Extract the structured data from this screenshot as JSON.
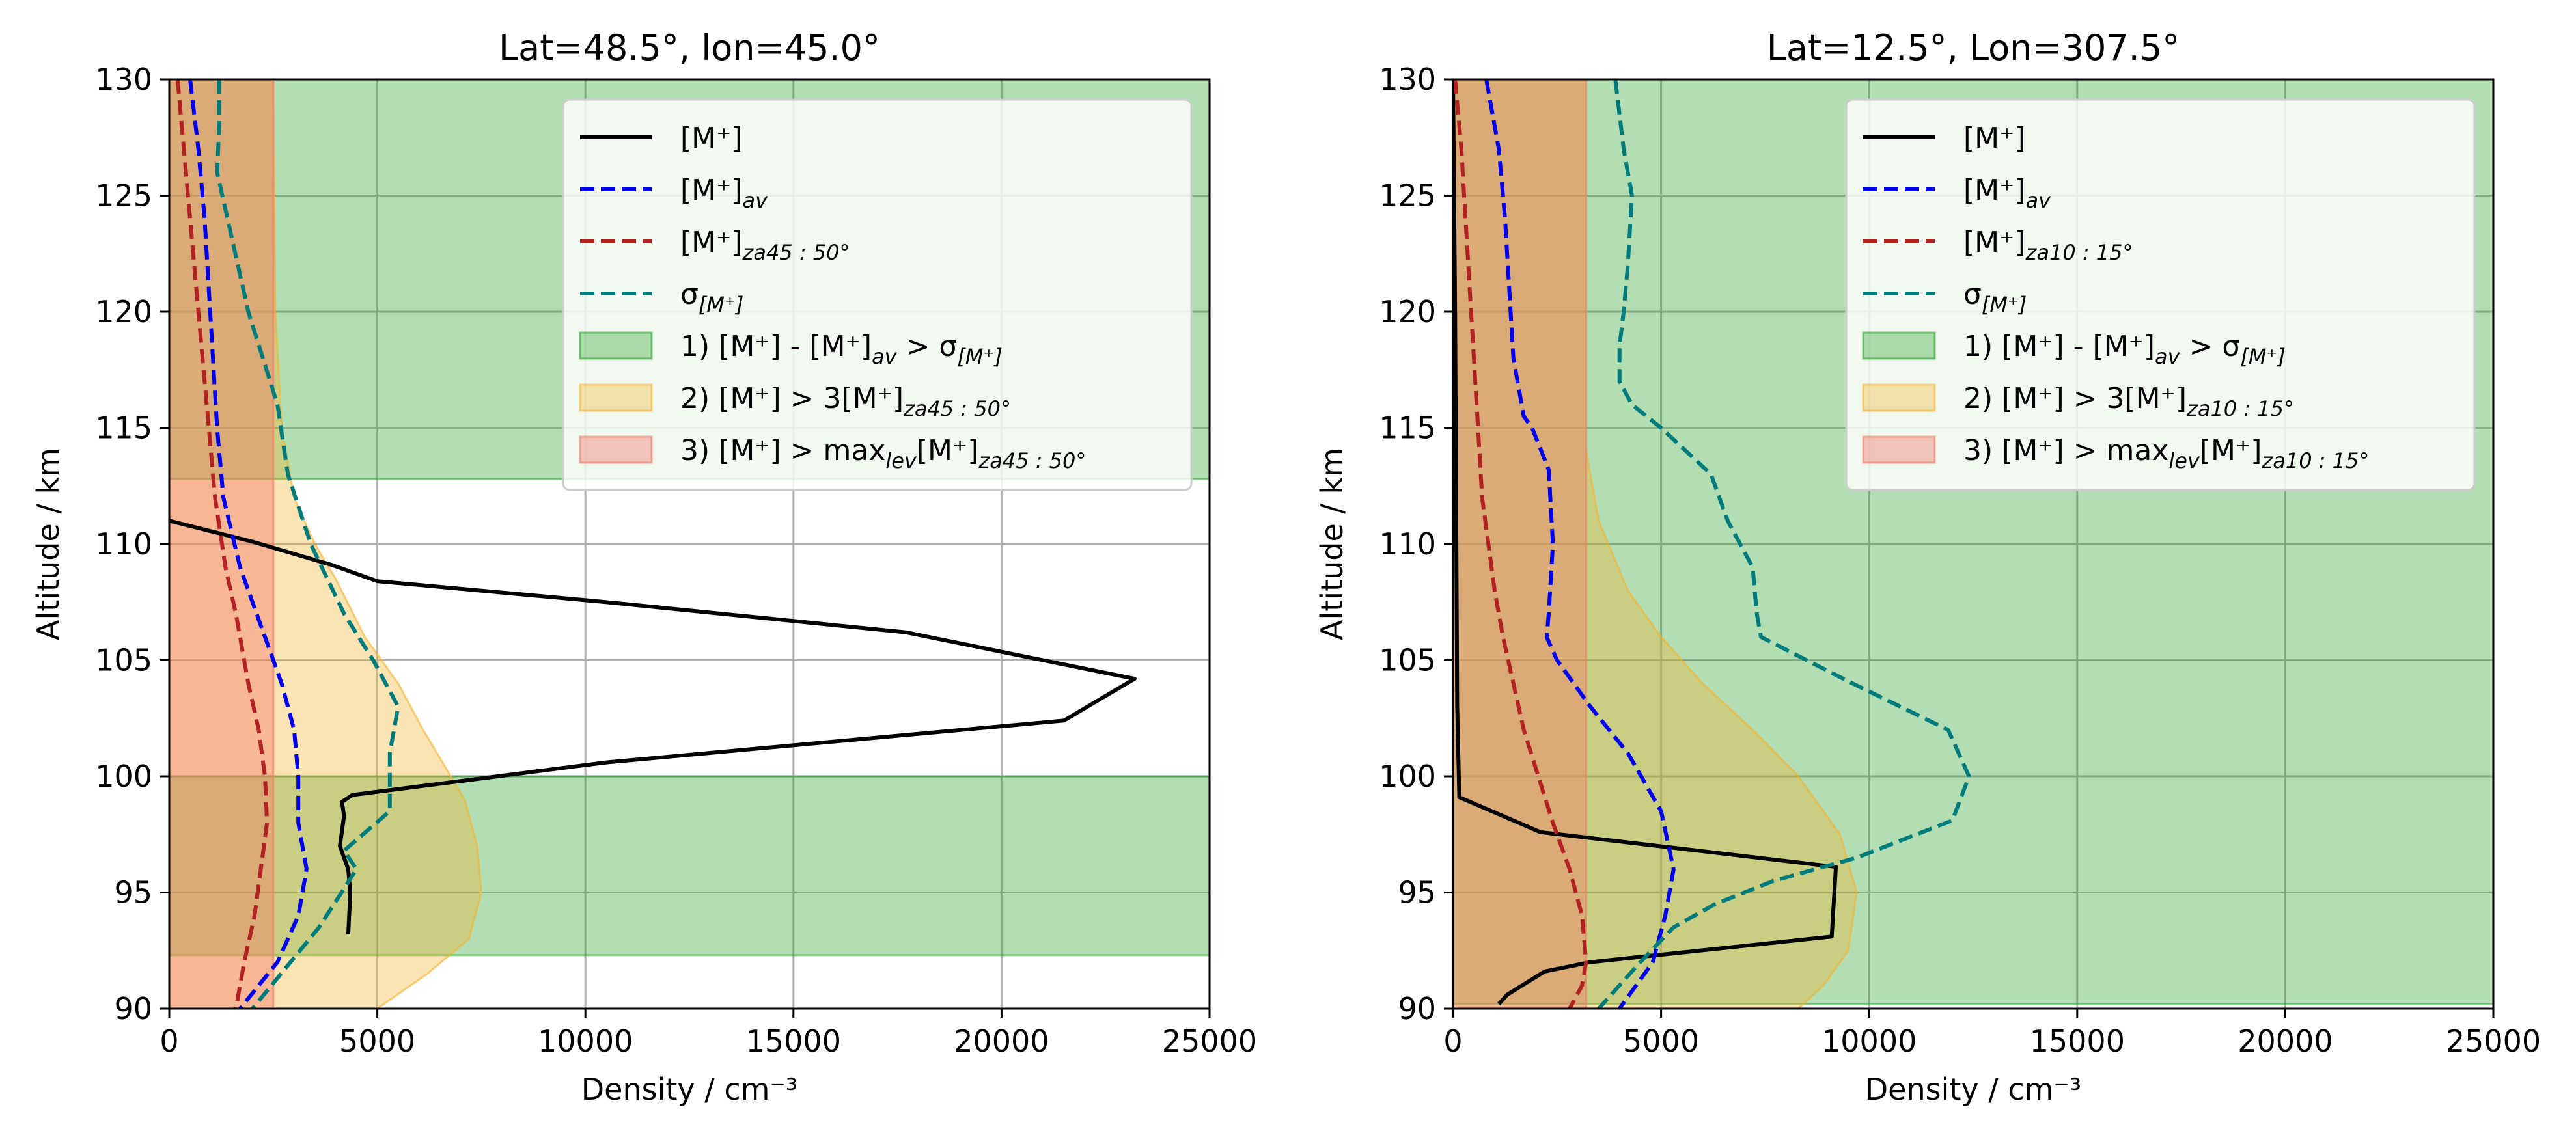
{
  "colors": {
    "zone1": "#2ca02c",
    "zone2": "#f5b32c",
    "zone3": "#f07a6a",
    "mplus": "#000000",
    "mplus_av": "#0000ee",
    "mplus_za": "#b22222",
    "sigma": "#007b7b",
    "grid": "#b0b0b0"
  },
  "chart_data": [
    {
      "type": "line",
      "title": "Lat=48.5°, lon=45.0°",
      "xlabel": "Density / cm⁻³",
      "ylabel": "Altitude / km",
      "xlim": [
        0,
        25000
      ],
      "ylim": [
        90,
        130
      ],
      "xticks": [
        0,
        5000,
        10000,
        15000,
        20000,
        25000
      ],
      "yticks": [
        90,
        95,
        100,
        105,
        110,
        115,
        120,
        125,
        130
      ],
      "grid": true,
      "legend_position": "upper-right",
      "legend": [
        {
          "key": "mplus",
          "kind": "line",
          "text": "[M⁺]",
          "sub": ""
        },
        {
          "key": "mplus_av",
          "kind": "dashed",
          "text": "[M⁺]",
          "sub": "av"
        },
        {
          "key": "mplus_za",
          "kind": "dashed",
          "text": "[M⁺]",
          "sub": "za45 : 50°"
        },
        {
          "key": "sigma",
          "kind": "dashed",
          "text": "σ",
          "sub": "[M⁺]"
        },
        {
          "key": "zone1",
          "kind": "patch",
          "text": "1) [M⁺] - [M⁺]",
          "sub": "av",
          "tail": " > σ",
          "tailsub": "[M⁺]"
        },
        {
          "key": "zone2",
          "kind": "patch",
          "text": "2) [M⁺] > 3[M⁺]",
          "sub": "za45 : 50°"
        },
        {
          "key": "zone3",
          "kind": "patch",
          "text": "3) [M⁺] > max",
          "sub": "lev",
          "tail": "[M⁺]",
          "tailsub": "za45 : 50°"
        }
      ],
      "zone1_bands": [
        [
          92.3,
          100.0
        ],
        [
          112.8,
          130.0
        ]
      ],
      "zone3_xmax": 2500,
      "zone2_upper": [
        [
          2500,
          130
        ],
        [
          2550,
          120
        ],
        [
          2700,
          115
        ],
        [
          3000,
          112
        ],
        [
          3500,
          110
        ],
        [
          4000,
          108.5
        ],
        [
          4700,
          106
        ],
        [
          5500,
          104
        ],
        [
          6100,
          102
        ],
        [
          6600,
          100.5
        ],
        [
          7100,
          99
        ],
        [
          7400,
          97
        ],
        [
          7500,
          95
        ],
        [
          7200,
          93
        ],
        [
          6200,
          91.5
        ],
        [
          5000,
          90
        ]
      ],
      "series": [
        {
          "key": "mplus",
          "x": [
            0,
            2000,
            3900,
            5000,
            10500,
            17700,
            23200,
            21500,
            10500,
            4400,
            4150,
            4200,
            4100,
            4300,
            4350,
            4300
          ],
          "y": [
            111,
            110.1,
            109.1,
            108.4,
            107.5,
            106.2,
            104.2,
            102.4,
            100.6,
            99.2,
            98.9,
            98.3,
            97.0,
            96.0,
            95.0,
            93.2
          ]
        },
        {
          "key": "mplus_av",
          "x": [
            500,
            700,
            850,
            950,
            1050,
            1150,
            1300,
            1700,
            2100,
            2700,
            3000,
            3100,
            3100,
            3300,
            3100,
            2600,
            1700
          ],
          "y": [
            130,
            127,
            124,
            121,
            118,
            115,
            112,
            109,
            107,
            104,
            102,
            100,
            98,
            96,
            94,
            92,
            90
          ]
        },
        {
          "key": "mplus_za",
          "x": [
            200,
            350,
            500,
            650,
            800,
            950,
            1100,
            1350,
            1600,
            1900,
            2150,
            2300,
            2350,
            2200,
            2050,
            1800,
            1600
          ],
          "y": [
            130,
            127,
            124,
            121,
            118,
            115,
            112,
            109,
            107,
            104,
            102,
            100,
            98,
            96,
            94,
            92,
            90
          ]
        },
        {
          "key": "sigma",
          "x": [
            1200,
            1200,
            1150,
            1400,
            1900,
            2600,
            2850,
            3400,
            4200,
            4900,
            5500,
            5300,
            5300,
            4200,
            4500,
            3600,
            2000
          ],
          "y": [
            130,
            128,
            126,
            124,
            120,
            116,
            113,
            110,
            107,
            105,
            103,
            101,
            98.5,
            96.8,
            96.0,
            93.5,
            90
          ]
        }
      ]
    },
    {
      "type": "line",
      "title": "Lat=12.5°, Lon=307.5°",
      "xlabel": "Density / cm⁻³",
      "ylabel": "Altitude / km",
      "xlim": [
        0,
        25000
      ],
      "ylim": [
        90,
        130
      ],
      "xticks": [
        0,
        5000,
        10000,
        15000,
        20000,
        25000
      ],
      "yticks": [
        90,
        95,
        100,
        105,
        110,
        115,
        120,
        125,
        130
      ],
      "grid": true,
      "legend_position": "upper-right",
      "legend": [
        {
          "key": "mplus",
          "kind": "line",
          "text": "[M⁺]",
          "sub": ""
        },
        {
          "key": "mplus_av",
          "kind": "dashed",
          "text": "[M⁺]",
          "sub": "av"
        },
        {
          "key": "mplus_za",
          "kind": "dashed",
          "text": "[M⁺]",
          "sub": "za10 : 15°"
        },
        {
          "key": "sigma",
          "kind": "dashed",
          "text": "σ",
          "sub": "[M⁺]"
        },
        {
          "key": "zone1",
          "kind": "patch",
          "text": "1) [M⁺] - [M⁺]",
          "sub": "av",
          "tail": " > σ",
          "tailsub": "[M⁺]"
        },
        {
          "key": "zone2",
          "kind": "patch",
          "text": "2) [M⁺] > 3[M⁺]",
          "sub": "za10 : 15°"
        },
        {
          "key": "zone3",
          "kind": "patch",
          "text": "3) [M⁺] > max",
          "sub": "lev",
          "tail": "[M⁺]",
          "tailsub": "za10 : 15°"
        }
      ],
      "zone1_bands": [
        [
          90.2,
          130.0
        ]
      ],
      "zone3_xmax": 3200,
      "zone2_upper": [
        [
          3200,
          130
        ],
        [
          3200,
          114
        ],
        [
          3500,
          111
        ],
        [
          4200,
          108
        ],
        [
          5000,
          106
        ],
        [
          6000,
          104
        ],
        [
          7200,
          102
        ],
        [
          8300,
          100
        ],
        [
          9300,
          97.5
        ],
        [
          9700,
          95
        ],
        [
          9500,
          92.5
        ],
        [
          8900,
          91
        ],
        [
          8300,
          90
        ]
      ],
      "series": [
        {
          "key": "mplus",
          "x": [
            0,
            50,
            80,
            100,
            150,
            2100,
            9200,
            9100,
            3300,
            2200,
            1300,
            1100
          ],
          "y": [
            130,
            120,
            110,
            103,
            99.1,
            97.6,
            96.1,
            93.1,
            92.0,
            91.6,
            90.6,
            90.2
          ]
        },
        {
          "key": "mplus_av",
          "x": [
            800,
            1100,
            1250,
            1350,
            1450,
            1700,
            1900,
            2300,
            2400,
            2300,
            2250,
            2500,
            3300,
            4200,
            5000,
            5300,
            5100,
            4800,
            4000
          ],
          "y": [
            130,
            127,
            124,
            121,
            118,
            115.5,
            115,
            113.2,
            110,
            107,
            106,
            105,
            103,
            101,
            98.5,
            96,
            94,
            92,
            90
          ]
        },
        {
          "key": "mplus_za",
          "x": [
            50,
            200,
            300,
            400,
            500,
            600,
            700,
            850,
            1000,
            1200,
            1450,
            1700,
            2050,
            2400,
            2800,
            3100,
            3200,
            3100,
            2800
          ],
          "y": [
            130,
            127,
            124,
            121,
            118,
            115,
            112,
            110,
            108,
            106,
            104,
            102,
            100,
            98,
            96,
            94,
            92,
            91,
            90
          ]
        },
        {
          "key": "sigma",
          "x": [
            3900,
            4100,
            4300,
            4200,
            4100,
            4000,
            4000,
            4300,
            5000,
            6200,
            6600,
            7200,
            7300,
            7400,
            9600,
            11900,
            12400,
            12000,
            9700,
            7700,
            6300,
            5300,
            4500,
            3500
          ],
          "y": [
            130,
            127,
            125,
            122,
            120,
            118.5,
            117,
            116,
            115,
            113,
            111,
            109,
            107,
            106,
            104,
            102,
            100,
            98.1,
            96.5,
            95.5,
            94.5,
            93.5,
            92,
            90
          ]
        }
      ]
    }
  ]
}
